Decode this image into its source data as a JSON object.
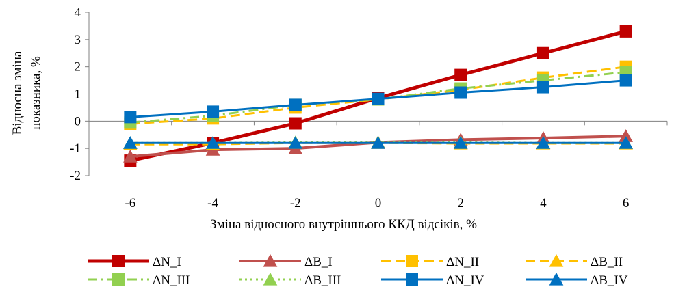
{
  "chart_data": {
    "type": "line",
    "xlabel": "Зміна відносного внутрішнього ККД відсіків,  %",
    "ylabel_lines": [
      "Відносна зміна",
      "показника, %"
    ],
    "x": [
      -6,
      -4,
      -2,
      0,
      2,
      4,
      6
    ],
    "x_ticks": [
      "-6",
      "-4",
      "-2",
      "0",
      "2",
      "4",
      "6"
    ],
    "y_ticks": [
      "4",
      "3",
      "2",
      "1",
      "0",
      "-1",
      "-2"
    ],
    "xlim": [
      -7,
      7
    ],
    "ylim": [
      -2,
      4
    ],
    "grid": false,
    "legend_position": "bottom",
    "series": [
      {
        "name": "ΔN_I",
        "values": [
          -1.45,
          -0.8,
          -0.08,
          0.85,
          1.7,
          2.5,
          3.3
        ],
        "color": "#c00000",
        "marker": "square",
        "dash": "solid",
        "width": 5
      },
      {
        "name": "ΔB_I",
        "values": [
          -1.3,
          -1.05,
          -1.0,
          -0.78,
          -0.68,
          -0.62,
          -0.55
        ],
        "color": "#c0504d",
        "marker": "triangle",
        "dash": "solid",
        "width": 4
      },
      {
        "name": "ΔN_II",
        "values": [
          -0.1,
          0.1,
          0.5,
          0.8,
          1.15,
          1.6,
          2.0
        ],
        "color": "#ffc000",
        "marker": "square",
        "dash": "dash",
        "width": 3
      },
      {
        "name": "ΔB_II",
        "values": [
          -0.85,
          -0.85,
          -0.8,
          -0.8,
          -0.82,
          -0.82,
          -0.82
        ],
        "color": "#ffc000",
        "marker": "triangle",
        "dash": "dash",
        "width": 3
      },
      {
        "name": "ΔN_III",
        "values": [
          -0.05,
          0.2,
          0.6,
          0.8,
          1.2,
          1.5,
          1.8
        ],
        "color": "#92d050",
        "marker": "square",
        "dash": "dashdot",
        "width": 3
      },
      {
        "name": "ΔB_III",
        "values": [
          -0.8,
          -0.8,
          -0.78,
          -0.78,
          -0.78,
          -0.8,
          -0.8
        ],
        "color": "#92d050",
        "marker": "triangle",
        "dash": "dot",
        "width": 3
      },
      {
        "name": "ΔN_IV",
        "values": [
          0.15,
          0.35,
          0.6,
          0.82,
          1.05,
          1.25,
          1.5
        ],
        "color": "#0070c0",
        "marker": "square",
        "dash": "solid",
        "width": 3
      },
      {
        "name": "ΔB_IV",
        "values": [
          -0.8,
          -0.8,
          -0.8,
          -0.8,
          -0.8,
          -0.8,
          -0.8
        ],
        "color": "#0070c0",
        "marker": "triangle",
        "dash": "solid",
        "width": 3
      }
    ]
  }
}
